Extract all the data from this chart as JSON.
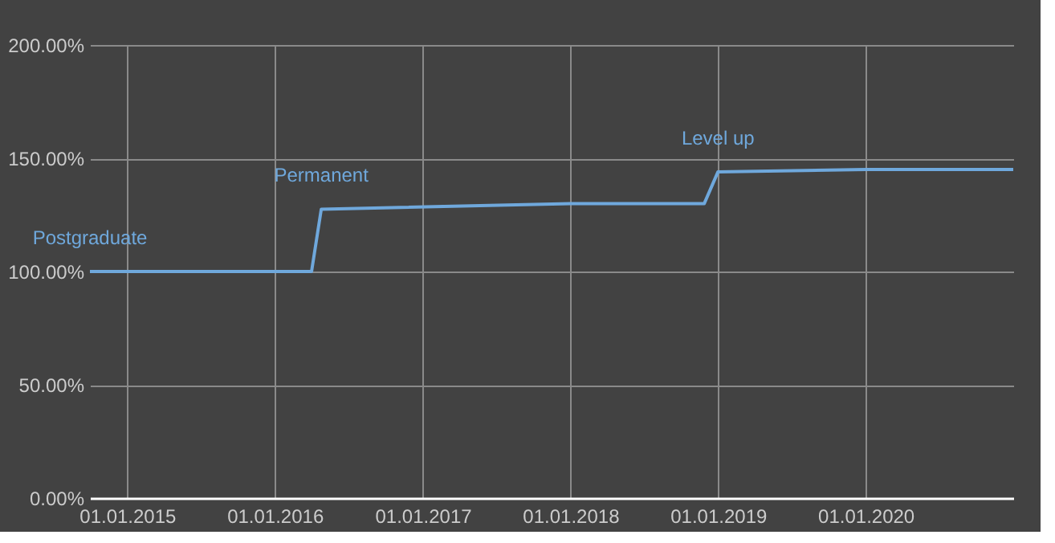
{
  "chart_data": {
    "type": "line",
    "x": [
      "2014-10-01",
      "2016-04-01",
      "2016-04-25",
      "2018-01-01",
      "2018-11-28",
      "2019-01-01",
      "2020-01-01",
      "2020-12-31"
    ],
    "series": [
      {
        "color": "#6fa8dc",
        "values": [
          100,
          100,
          127.5,
          130,
          130,
          144,
          145,
          145
        ]
      }
    ],
    "xlim": [
      "2014-10-01",
      "2020-12-31"
    ],
    "xticks": [
      {
        "value": "2015-01-01",
        "label": "01.01.2015"
      },
      {
        "value": "2016-01-01",
        "label": "01.01.2016"
      },
      {
        "value": "2017-01-01",
        "label": "01.01.2017"
      },
      {
        "value": "2018-01-01",
        "label": "01.01.2018"
      },
      {
        "value": "2019-01-01",
        "label": "01.01.2019"
      },
      {
        "value": "2020-01-01",
        "label": "01.01.2020"
      }
    ],
    "ylim": [
      0,
      200
    ],
    "yticks": [
      {
        "value": 0,
        "label": "0.00%"
      },
      {
        "value": 50,
        "label": "50.00%"
      },
      {
        "value": 100,
        "label": "100.00%"
      },
      {
        "value": 150,
        "label": "150.00%"
      },
      {
        "value": 200,
        "label": "200.00%"
      }
    ],
    "annotations": [
      {
        "text": "Postgraduate",
        "x": "2014-10-01",
        "y": 100
      },
      {
        "text": "Permanent",
        "x": "2016-04-25",
        "y": 127.5
      },
      {
        "text": "Level up",
        "x": "2019-01-01",
        "y": 144
      }
    ],
    "grid": true,
    "marker": "none",
    "line_style": "solid"
  }
}
